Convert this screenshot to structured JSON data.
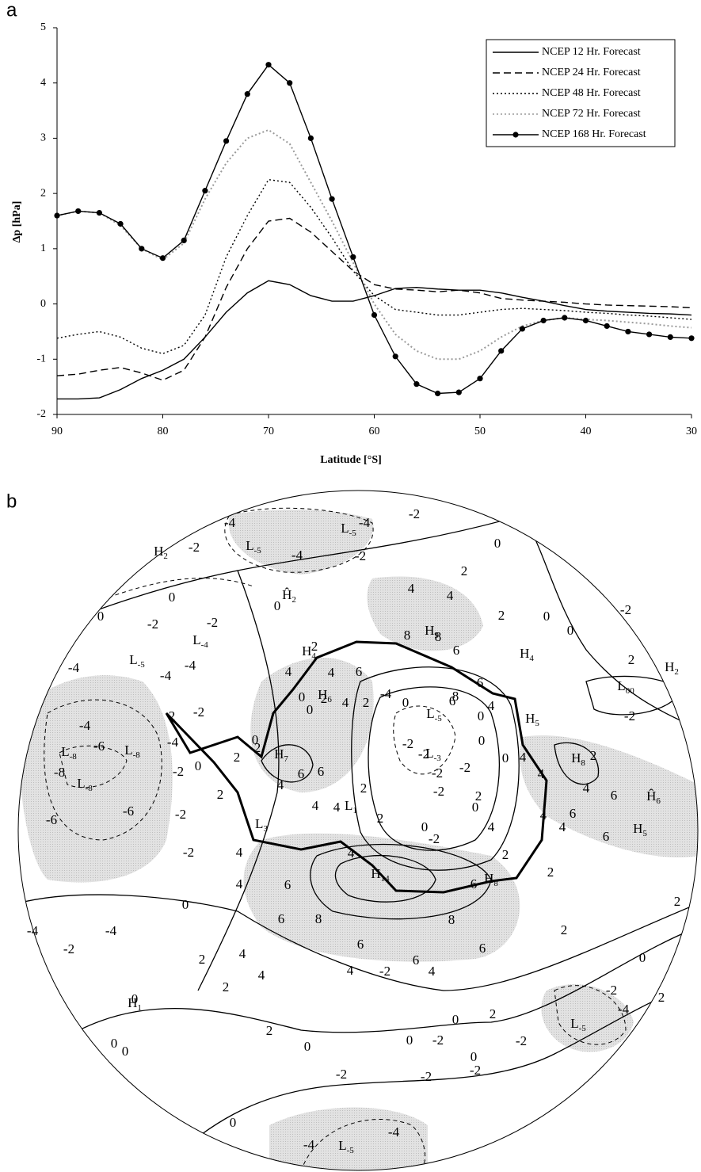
{
  "panel_a_label": "a",
  "chart_data": {
    "type": "line",
    "y_label": "Δp [hPa]",
    "x_label": "Latitude [°S]",
    "x": [
      90,
      88,
      86,
      84,
      82,
      80,
      78,
      76,
      74,
      72,
      70,
      68,
      66,
      64,
      62,
      60,
      58,
      56,
      54,
      52,
      50,
      48,
      46,
      44,
      42,
      40,
      38,
      36,
      34,
      32,
      30
    ],
    "xlim": [
      90,
      30
    ],
    "xticks": [
      90,
      80,
      70,
      60,
      50,
      40,
      30
    ],
    "ylim": [
      -2,
      5
    ],
    "yticks": [
      -2,
      -1,
      0,
      1,
      2,
      3,
      4,
      5
    ],
    "legend": "upper right",
    "series": [
      {
        "name": "NCEP 12  Hr. Forecast",
        "color": "#000000",
        "style": "solid",
        "values": [
          -1.72,
          -1.72,
          -1.7,
          -1.55,
          -1.35,
          -1.2,
          -1.0,
          -0.6,
          -0.15,
          0.2,
          0.42,
          0.35,
          0.15,
          0.05,
          0.05,
          0.15,
          0.28,
          0.3,
          0.27,
          0.25,
          0.25,
          0.2,
          0.12,
          0.05,
          -0.03,
          -0.1,
          -0.13,
          -0.15,
          -0.17,
          -0.18,
          -0.2
        ]
      },
      {
        "name": "NCEP 24  Hr. Forecast",
        "color": "#000000",
        "style": "dashed",
        "values": [
          -1.3,
          -1.27,
          -1.2,
          -1.15,
          -1.25,
          -1.38,
          -1.2,
          -0.6,
          0.3,
          1.0,
          1.5,
          1.55,
          1.3,
          0.95,
          0.6,
          0.35,
          0.27,
          0.25,
          0.22,
          0.25,
          0.2,
          0.1,
          0.07,
          0.05,
          0.03,
          0.0,
          -0.02,
          -0.03,
          -0.04,
          -0.05,
          -0.07
        ]
      },
      {
        "name": "NCEP 48  Hr. Forecast",
        "color": "#000000",
        "style": "dotted",
        "values": [
          -0.62,
          -0.55,
          -0.5,
          -0.6,
          -0.8,
          -0.9,
          -0.75,
          -0.2,
          0.85,
          1.6,
          2.25,
          2.2,
          1.75,
          1.2,
          0.6,
          0.15,
          -0.1,
          -0.15,
          -0.2,
          -0.2,
          -0.15,
          -0.1,
          -0.08,
          -0.1,
          -0.12,
          -0.15,
          -0.17,
          -0.2,
          -0.22,
          -0.25,
          -0.28
        ]
      },
      {
        "name": "NCEP 72  Hr. Forecast",
        "color": "#9a9a9a",
        "style": "dotted",
        "values": [
          1.6,
          1.68,
          1.65,
          1.42,
          1.0,
          0.8,
          1.1,
          1.9,
          2.55,
          3.0,
          3.15,
          2.9,
          2.2,
          1.5,
          0.75,
          0.0,
          -0.55,
          -0.85,
          -1.0,
          -1.0,
          -0.85,
          -0.6,
          -0.4,
          -0.3,
          -0.25,
          -0.28,
          -0.3,
          -0.33,
          -0.36,
          -0.4,
          -0.43
        ]
      },
      {
        "name": "NCEP 168  Hr. Forecast",
        "color": "#000000",
        "style": "solid",
        "marker": "circle",
        "values": [
          1.6,
          1.68,
          1.65,
          1.45,
          1.0,
          0.83,
          1.15,
          2.05,
          2.95,
          3.8,
          4.33,
          4.0,
          3.0,
          1.9,
          0.85,
          -0.2,
          -0.95,
          -1.45,
          -1.62,
          -1.6,
          -1.35,
          -0.85,
          -0.45,
          -0.3,
          -0.25,
          -0.3,
          -0.4,
          -0.5,
          -0.55,
          -0.6,
          -0.62
        ]
      }
    ]
  },
  "panel_b": {
    "label": "b",
    "pressure_centers": [
      {
        "letter": "H",
        "sub": "2"
      },
      {
        "letter": "Ĥ",
        "sub": "2"
      },
      {
        "letter": "H",
        "sub": "9"
      },
      {
        "letter": "L",
        "sub": "-5"
      },
      {
        "letter": "L",
        "sub": "-5"
      },
      {
        "letter": "H",
        "sub": "4"
      },
      {
        "letter": "L",
        "sub": "-4"
      },
      {
        "letter": "L",
        "sub": "-5"
      },
      {
        "letter": "H",
        "sub": "4"
      },
      {
        "letter": "H",
        "sub": "2"
      },
      {
        "letter": "L",
        "sub": "00"
      },
      {
        "letter": "H",
        "sub": "6"
      },
      {
        "letter": "L",
        "sub": "-5"
      },
      {
        "letter": "H",
        "sub": "5"
      },
      {
        "letter": "H",
        "sub": "7"
      },
      {
        "letter": "L",
        "sub": "-8"
      },
      {
        "letter": "L",
        "sub": "-8"
      },
      {
        "letter": "L",
        "sub": "-8"
      },
      {
        "letter": "L",
        "sub": "-3"
      },
      {
        "letter": "H",
        "sub": "8"
      },
      {
        "letter": "L",
        "sub": "1"
      },
      {
        "letter": "L",
        "sub": "3"
      },
      {
        "letter": "Ĥ",
        "sub": "6"
      },
      {
        "letter": "H",
        "sub": "5"
      },
      {
        "letter": "H",
        "sub": "14"
      },
      {
        "letter": "H",
        "sub": "8"
      },
      {
        "letter": "H",
        "sub": "1"
      },
      {
        "letter": "L",
        "sub": "-5"
      },
      {
        "letter": "L",
        "sub": "-5"
      }
    ],
    "contour_labels": [
      -4,
      -4,
      -2,
      -2,
      -4,
      -2,
      0,
      2,
      4,
      4,
      2,
      0,
      0,
      0,
      0,
      0,
      -2,
      -2,
      -2,
      8,
      8,
      2,
      -4,
      6,
      2,
      -4,
      -4,
      4,
      6,
      4,
      -4,
      8,
      6,
      4,
      6,
      0,
      2,
      4,
      2,
      0,
      0,
      -2,
      2,
      -2,
      -4,
      -4,
      0,
      0,
      -2,
      0,
      -2,
      -6,
      2,
      0,
      -2,
      4,
      2,
      -2,
      0,
      2,
      2,
      4,
      2,
      4,
      6,
      6,
      -8,
      -2,
      6,
      -2,
      4,
      0,
      -6,
      4,
      -2,
      2,
      4,
      -6,
      2,
      0,
      -2,
      4,
      6,
      4,
      4,
      6,
      2,
      4,
      4,
      -2,
      4,
      6,
      2,
      6,
      6,
      8,
      8,
      2,
      0,
      2,
      6,
      -4,
      -4,
      6,
      4,
      -2,
      2,
      0,
      4,
      -2,
      4,
      2,
      4,
      6,
      2,
      0,
      0,
      2,
      -2,
      -4,
      0,
      0,
      2,
      0,
      -2,
      -2,
      0,
      0,
      -2,
      -2,
      -2,
      0,
      -4,
      -4
    ]
  }
}
